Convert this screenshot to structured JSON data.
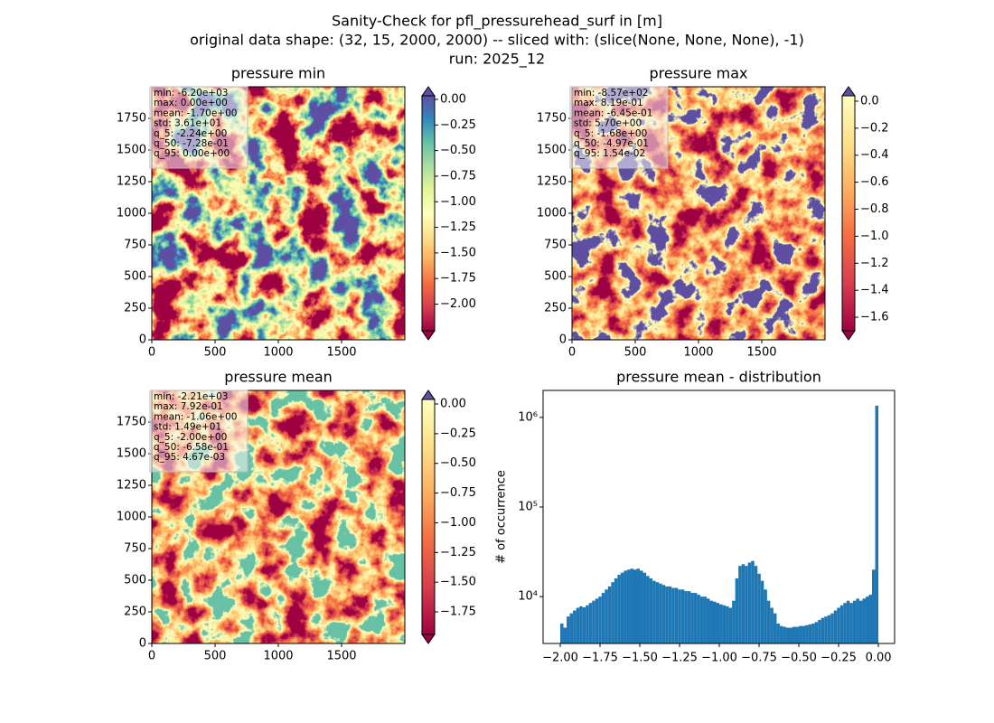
{
  "suptitle": [
    "Sanity-Check for pfl_pressurehead_surf in [m]",
    "original data shape: (32, 15, 2000, 2000) -- sliced with: (slice(None, None, None), -1)",
    "run: 2025_12"
  ],
  "chart_data": [
    {
      "type": "heatmap",
      "title": "pressure min",
      "xlim": [
        0,
        2000
      ],
      "xticks": [
        0,
        500,
        1000,
        1500
      ],
      "ylim": [
        0,
        2000
      ],
      "yticks": [
        0,
        250,
        500,
        750,
        1000,
        1250,
        1500,
        1750
      ],
      "clim": [
        -2.26,
        0.035
      ],
      "cticks": [
        {
          "value": 0,
          "label": "0.00"
        },
        {
          "value": -0.25,
          "label": "−0.25"
        },
        {
          "value": -0.5,
          "label": "−0.50"
        },
        {
          "value": -0.75,
          "label": "−0.75"
        },
        {
          "value": -1,
          "label": "−1.00"
        },
        {
          "value": -1.25,
          "label": "−1.25"
        },
        {
          "value": -1.5,
          "label": "−1.50"
        },
        {
          "value": -1.75,
          "label": "−1.75"
        },
        {
          "value": -2,
          "label": "−2.00"
        }
      ],
      "colormap": [
        "#9e0142",
        "#d53e4f",
        "#f46d43",
        "#fdae61",
        "#fee08b",
        "#ffffbf",
        "#e6f598",
        "#abdda4",
        "#66c2a5",
        "#3288bd",
        "#5e4fa2"
      ],
      "extend_colors": [
        "#5e4fa2",
        "#9e0142"
      ],
      "stats": [
        "min: -6.20e+03",
        "max: 0.00e+00",
        "mean: -1.70e+00",
        "std: 3.61e+01",
        "q_5: -2.24e+00",
        "q_50: -7.28e-01",
        "q_95: 0.00e+00"
      ]
    },
    {
      "type": "heatmap",
      "title": "pressure max",
      "xlim": [
        0,
        2000
      ],
      "xticks": [
        0,
        500,
        1000,
        1500
      ],
      "ylim": [
        0,
        2000
      ],
      "yticks": [
        0,
        250,
        500,
        750,
        1000,
        1250,
        1500,
        1750
      ],
      "clim": [
        -1.7,
        0.04
      ],
      "cticks": [
        {
          "value": 0,
          "label": "0.0"
        },
        {
          "value": -0.2,
          "label": "−0.2"
        },
        {
          "value": -0.4,
          "label": "−0.4"
        },
        {
          "value": -0.6,
          "label": "−0.6"
        },
        {
          "value": -0.8,
          "label": "−0.8"
        },
        {
          "value": -1,
          "label": "−1.0"
        },
        {
          "value": -1.2,
          "label": "−1.2"
        },
        {
          "value": -1.4,
          "label": "−1.4"
        },
        {
          "value": -1.6,
          "label": "−1.6"
        }
      ],
      "colormap": [
        "#9e0142",
        "#d53e4f",
        "#f46d43",
        "#fdae61",
        "#fee08b",
        "#ffffbf"
      ],
      "extend_colors": [
        "#5e4fa2",
        "#9e0142"
      ],
      "stats": [
        "min: -8.57e+02",
        "max: 8.19e-01",
        "mean: -6.45e-01",
        "std: 5.70e+00",
        "q_5: -1.68e+00",
        "q_50: -4.97e-01",
        "q_95: 1.54e-02"
      ]
    },
    {
      "type": "heatmap",
      "title": "pressure mean",
      "xlim": [
        0,
        2000
      ],
      "xticks": [
        0,
        500,
        1000,
        1500
      ],
      "ylim": [
        0,
        2000
      ],
      "yticks": [
        0,
        250,
        500,
        750,
        1000,
        1250,
        1500,
        1750
      ],
      "clim": [
        -1.94,
        0.038
      ],
      "cticks": [
        {
          "value": 0,
          "label": "0.00"
        },
        {
          "value": -0.25,
          "label": "−0.25"
        },
        {
          "value": -0.5,
          "label": "−0.50"
        },
        {
          "value": -0.75,
          "label": "−0.75"
        },
        {
          "value": -1,
          "label": "−1.00"
        },
        {
          "value": -1.25,
          "label": "−1.25"
        },
        {
          "value": -1.5,
          "label": "−1.50"
        },
        {
          "value": -1.75,
          "label": "−1.75"
        }
      ],
      "colormap": [
        "#9e0142",
        "#d53e4f",
        "#f46d43",
        "#fdae61",
        "#fee08b",
        "#ffffbf"
      ],
      "extend_colors": [
        "#5e4fa2",
        "#9e0142"
      ],
      "stats": [
        "min: -2.21e+03",
        "max: 7.92e-01",
        "mean: -1.06e+00",
        "std: 1.49e+01",
        "q_5: -2.00e+00",
        "q_50: -6.58e-01",
        "q_95: 4.67e-03"
      ]
    },
    {
      "type": "histogram",
      "title": "pressure mean - distribution",
      "ylabel": "# of occurrence",
      "color": "#1f77b4",
      "log_y": true,
      "xlim": [
        -2.108,
        0.102
      ],
      "xticks": [
        {
          "value": -2,
          "label": "−2.00"
        },
        {
          "value": -1.75,
          "label": "−1.75"
        },
        {
          "value": -1.5,
          "label": "−1.50"
        },
        {
          "value": -1.25,
          "label": "−1.25"
        },
        {
          "value": -1,
          "label": "−1.00"
        },
        {
          "value": -0.75,
          "label": "−0.75"
        },
        {
          "value": -0.5,
          "label": "−0.50"
        },
        {
          "value": -0.25,
          "label": "−0.25"
        },
        {
          "value": 0,
          "label": "0.00"
        }
      ],
      "ylim": [
        3000,
        2000000
      ],
      "yticks": [
        {
          "value": 10000,
          "label": "10⁴"
        },
        {
          "value": 100000,
          "label": "10⁵"
        },
        {
          "value": 1000000,
          "label": "10⁶"
        }
      ],
      "bins": [
        -2.0,
        -1.98,
        -1.96,
        -1.94,
        -1.92,
        -1.9,
        -1.88,
        -1.86,
        -1.84,
        -1.82,
        -1.8,
        -1.78,
        -1.76,
        -1.74,
        -1.72,
        -1.7,
        -1.68,
        -1.66,
        -1.64,
        -1.62,
        -1.6,
        -1.58,
        -1.56,
        -1.54,
        -1.52,
        -1.5,
        -1.48,
        -1.46,
        -1.44,
        -1.42,
        -1.4,
        -1.38,
        -1.36,
        -1.34,
        -1.32,
        -1.3,
        -1.28,
        -1.26,
        -1.24,
        -1.22,
        -1.2,
        -1.18,
        -1.16,
        -1.14,
        -1.12,
        -1.1,
        -1.08,
        -1.06,
        -1.04,
        -1.02,
        -1.0,
        -0.98,
        -0.96,
        -0.94,
        -0.92,
        -0.9,
        -0.88,
        -0.86,
        -0.84,
        -0.82,
        -0.8,
        -0.78,
        -0.76,
        -0.74,
        -0.72,
        -0.7,
        -0.68,
        -0.66,
        -0.64,
        -0.62,
        -0.6,
        -0.58,
        -0.56,
        -0.54,
        -0.52,
        -0.5,
        -0.48,
        -0.46,
        -0.44,
        -0.42,
        -0.4,
        -0.38,
        -0.36,
        -0.34,
        -0.32,
        -0.3,
        -0.28,
        -0.26,
        -0.24,
        -0.22,
        -0.2,
        -0.18,
        -0.16,
        -0.14,
        -0.12,
        -0.1,
        -0.08,
        -0.06,
        -0.04,
        -0.02,
        0.0
      ],
      "counts": [
        5000,
        4500,
        6000,
        6500,
        7000,
        7500,
        7800,
        7600,
        8000,
        8500,
        9000,
        9500,
        10000,
        11000,
        12000,
        13000,
        14500,
        16000,
        17500,
        18500,
        19500,
        20000,
        20500,
        20000,
        20500,
        19500,
        18500,
        17000,
        16000,
        15000,
        14500,
        14000,
        13500,
        13000,
        13000,
        12500,
        12500,
        12000,
        12000,
        11500,
        11500,
        11000,
        11000,
        10500,
        10000,
        10000,
        9500,
        9000,
        8800,
        8500,
        8200,
        8000,
        7800,
        7500,
        9000,
        16000,
        22000,
        23000,
        22000,
        24000,
        25000,
        22000,
        18000,
        15000,
        12000,
        9000,
        7500,
        6500,
        5000,
        4700,
        4600,
        4500,
        4500,
        4600,
        4600,
        4700,
        4700,
        4800,
        4900,
        5000,
        5200,
        5500,
        5800,
        6000,
        6200,
        6500,
        7000,
        7500,
        8000,
        8500,
        9000,
        8500,
        9000,
        9500,
        9000,
        9500,
        10000,
        10500,
        20000,
        1350000
      ]
    }
  ]
}
